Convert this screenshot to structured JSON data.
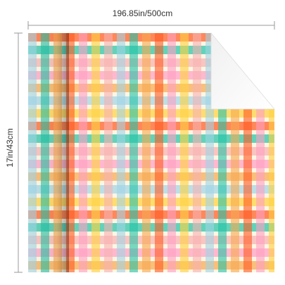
{
  "dimensions": {
    "width_label": "196.85in/500cm",
    "height_label": "17in/43cm"
  },
  "pattern": {
    "name": "multicolor gingham plaid",
    "background": "#fdf6e3",
    "stripe_colors": [
      "#ff5a1f",
      "#9fd4e6",
      "#ff9ec3",
      "#22c3a6",
      "#ffd23f",
      "#f7a84f",
      "#f6b0b0"
    ]
  },
  "corner_fold": {
    "color": "#ffffff"
  }
}
